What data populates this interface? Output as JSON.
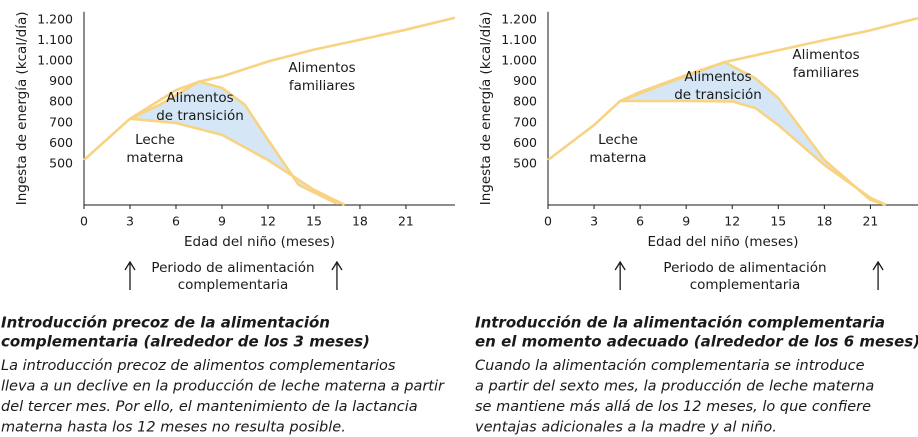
{
  "chart_data": [
    {
      "type": "line",
      "ylabel": "Ingesta de energía (kcal/día)",
      "xlabel": "Edad del niño (meses)",
      "xlim": [
        0,
        24.2
      ],
      "xticks": [
        0,
        3,
        6,
        9,
        12,
        15,
        18,
        21
      ],
      "ylim": [
        300,
        1240
      ],
      "yticks": [
        500,
        600,
        700,
        800,
        900,
        {
          "value": 1000,
          "label": "1.000"
        },
        {
          "value": 1100,
          "label": "1.100"
        },
        {
          "value": 1200,
          "label": "1.200"
        }
      ],
      "series": [
        {
          "color": "#f7d382",
          "x": [
            0,
            3,
            6,
            7.5,
            9,
            12,
            15,
            18,
            21,
            24.2
          ],
          "values": [
            519,
            720,
            859,
            900,
            925,
            998,
            1056,
            1104,
            1153,
            1211
          ]
        },
        {
          "color": "#f7d382",
          "x": [
            3,
            5,
            7.5,
            9,
            10.5,
            12,
            14,
            16.5
          ],
          "values": [
            720,
            790,
            900,
            870,
            787,
            617,
            398,
            306
          ]
        },
        {
          "color": "#f7d382",
          "x": [
            3,
            6,
            9,
            12,
            15,
            17
          ],
          "values": [
            720,
            699,
            641,
            519,
            374,
            301
          ]
        }
      ],
      "fill_color": "#d5e7f6",
      "annotations": [
        {
          "text": [
            "Alimentos",
            "familiares"
          ]
        },
        {
          "text": [
            "Alimentos",
            "de transición"
          ]
        },
        {
          "text": [
            "Leche",
            "materna"
          ]
        }
      ],
      "period": {
        "text": [
          "Periodo de alimentación",
          "complementaria"
        ],
        "x": [
          3,
          16.5
        ]
      },
      "caption": {
        "title": [
          "Introducción precoz de la alimentación",
          "complementaria (alrededor de los 3 meses)"
        ],
        "body": [
          "La introducción precoz de alimentos complementarios",
          "lleva a un declive en la producción de leche materna a partir",
          "del tercer mes. Por ello, el mantenimiento de la lactancia",
          "materna hasta los 12 meses no resulta posible."
        ]
      }
    },
    {
      "type": "line",
      "ylabel": "Ingesta de energía (kcal/día)",
      "xlabel": "Edad del niño (meses)",
      "xlim": [
        0,
        24.1
      ],
      "xticks": [
        0,
        3,
        6,
        9,
        12,
        15,
        18,
        21
      ],
      "ylim": [
        300,
        1240
      ],
      "yticks": [
        500,
        600,
        700,
        800,
        900,
        {
          "value": 1000,
          "label": "1.000"
        },
        {
          "value": 1100,
          "label": "1.100"
        },
        {
          "value": 1200,
          "label": "1.200"
        }
      ],
      "series": [
        {
          "color": "#f7d382",
          "x": [
            0,
            3,
            4.7,
            6,
            9,
            11.5,
            15,
            18,
            21,
            24.1
          ],
          "values": [
            519,
            689,
            806,
            850,
            932,
            995,
            1053,
            1102,
            1150,
            1209
          ]
        },
        {
          "color": "#f7d382",
          "x": [
            4.7,
            8,
            11.5,
            13.5,
            15,
            18,
            21,
            22
          ],
          "values": [
            806,
            900,
            995,
            917,
            820,
            519,
            325,
            301
          ]
        },
        {
          "color": "#f7d382",
          "x": [
            4.7,
            6,
            9,
            12,
            13.5,
            15,
            18,
            21,
            22
          ],
          "values": [
            806,
            806,
            806,
            804,
            772,
            689,
            495,
            335,
            301
          ]
        }
      ],
      "fill_color": "#d5e7f6",
      "annotations": [
        {
          "text": [
            "Alimentos",
            "familiares"
          ]
        },
        {
          "text": [
            "Alimentos",
            "de transición"
          ]
        },
        {
          "text": [
            "Leche",
            "materna"
          ]
        }
      ],
      "period": {
        "text": [
          "Periodo de alimentación",
          "complementaria"
        ],
        "x": [
          4.7,
          21.5
        ]
      },
      "caption": {
        "title": [
          "Introducción de la alimentación complementaria",
          "en el momento adecuado (alrededor de los 6 meses)"
        ],
        "body": [
          "Cuando la alimentación complementaria se introduce",
          "a partir del sexto mes, la producción de leche materna",
          "se mantiene más allá de los 12 meses, lo que confiere",
          "ventajas adicionales a la madre y al niño."
        ]
      }
    }
  ]
}
